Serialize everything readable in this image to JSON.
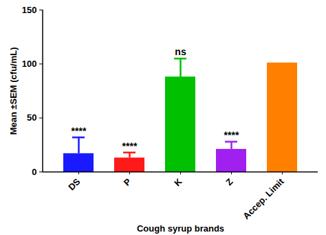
{
  "chart_data": {
    "type": "bar",
    "x_label": "Cough syrup brands",
    "y_label": "Mean ±SEM (cfu/mL)",
    "categories": [
      "DS",
      "P",
      "K",
      "Z",
      "Accep. Limit"
    ],
    "values": [
      17,
      13,
      88,
      21,
      101
    ],
    "sem": [
      15,
      5,
      17,
      7,
      null
    ],
    "significance": [
      "****",
      "****",
      "ns",
      "****",
      null
    ],
    "colors": [
      "#1a1aff",
      "#ff1a1a",
      "#00c000",
      "#a020f0",
      "#ff8000"
    ],
    "ylim": [
      0,
      150
    ],
    "yticks": [
      0,
      50,
      100,
      150
    ],
    "grid": false
  }
}
